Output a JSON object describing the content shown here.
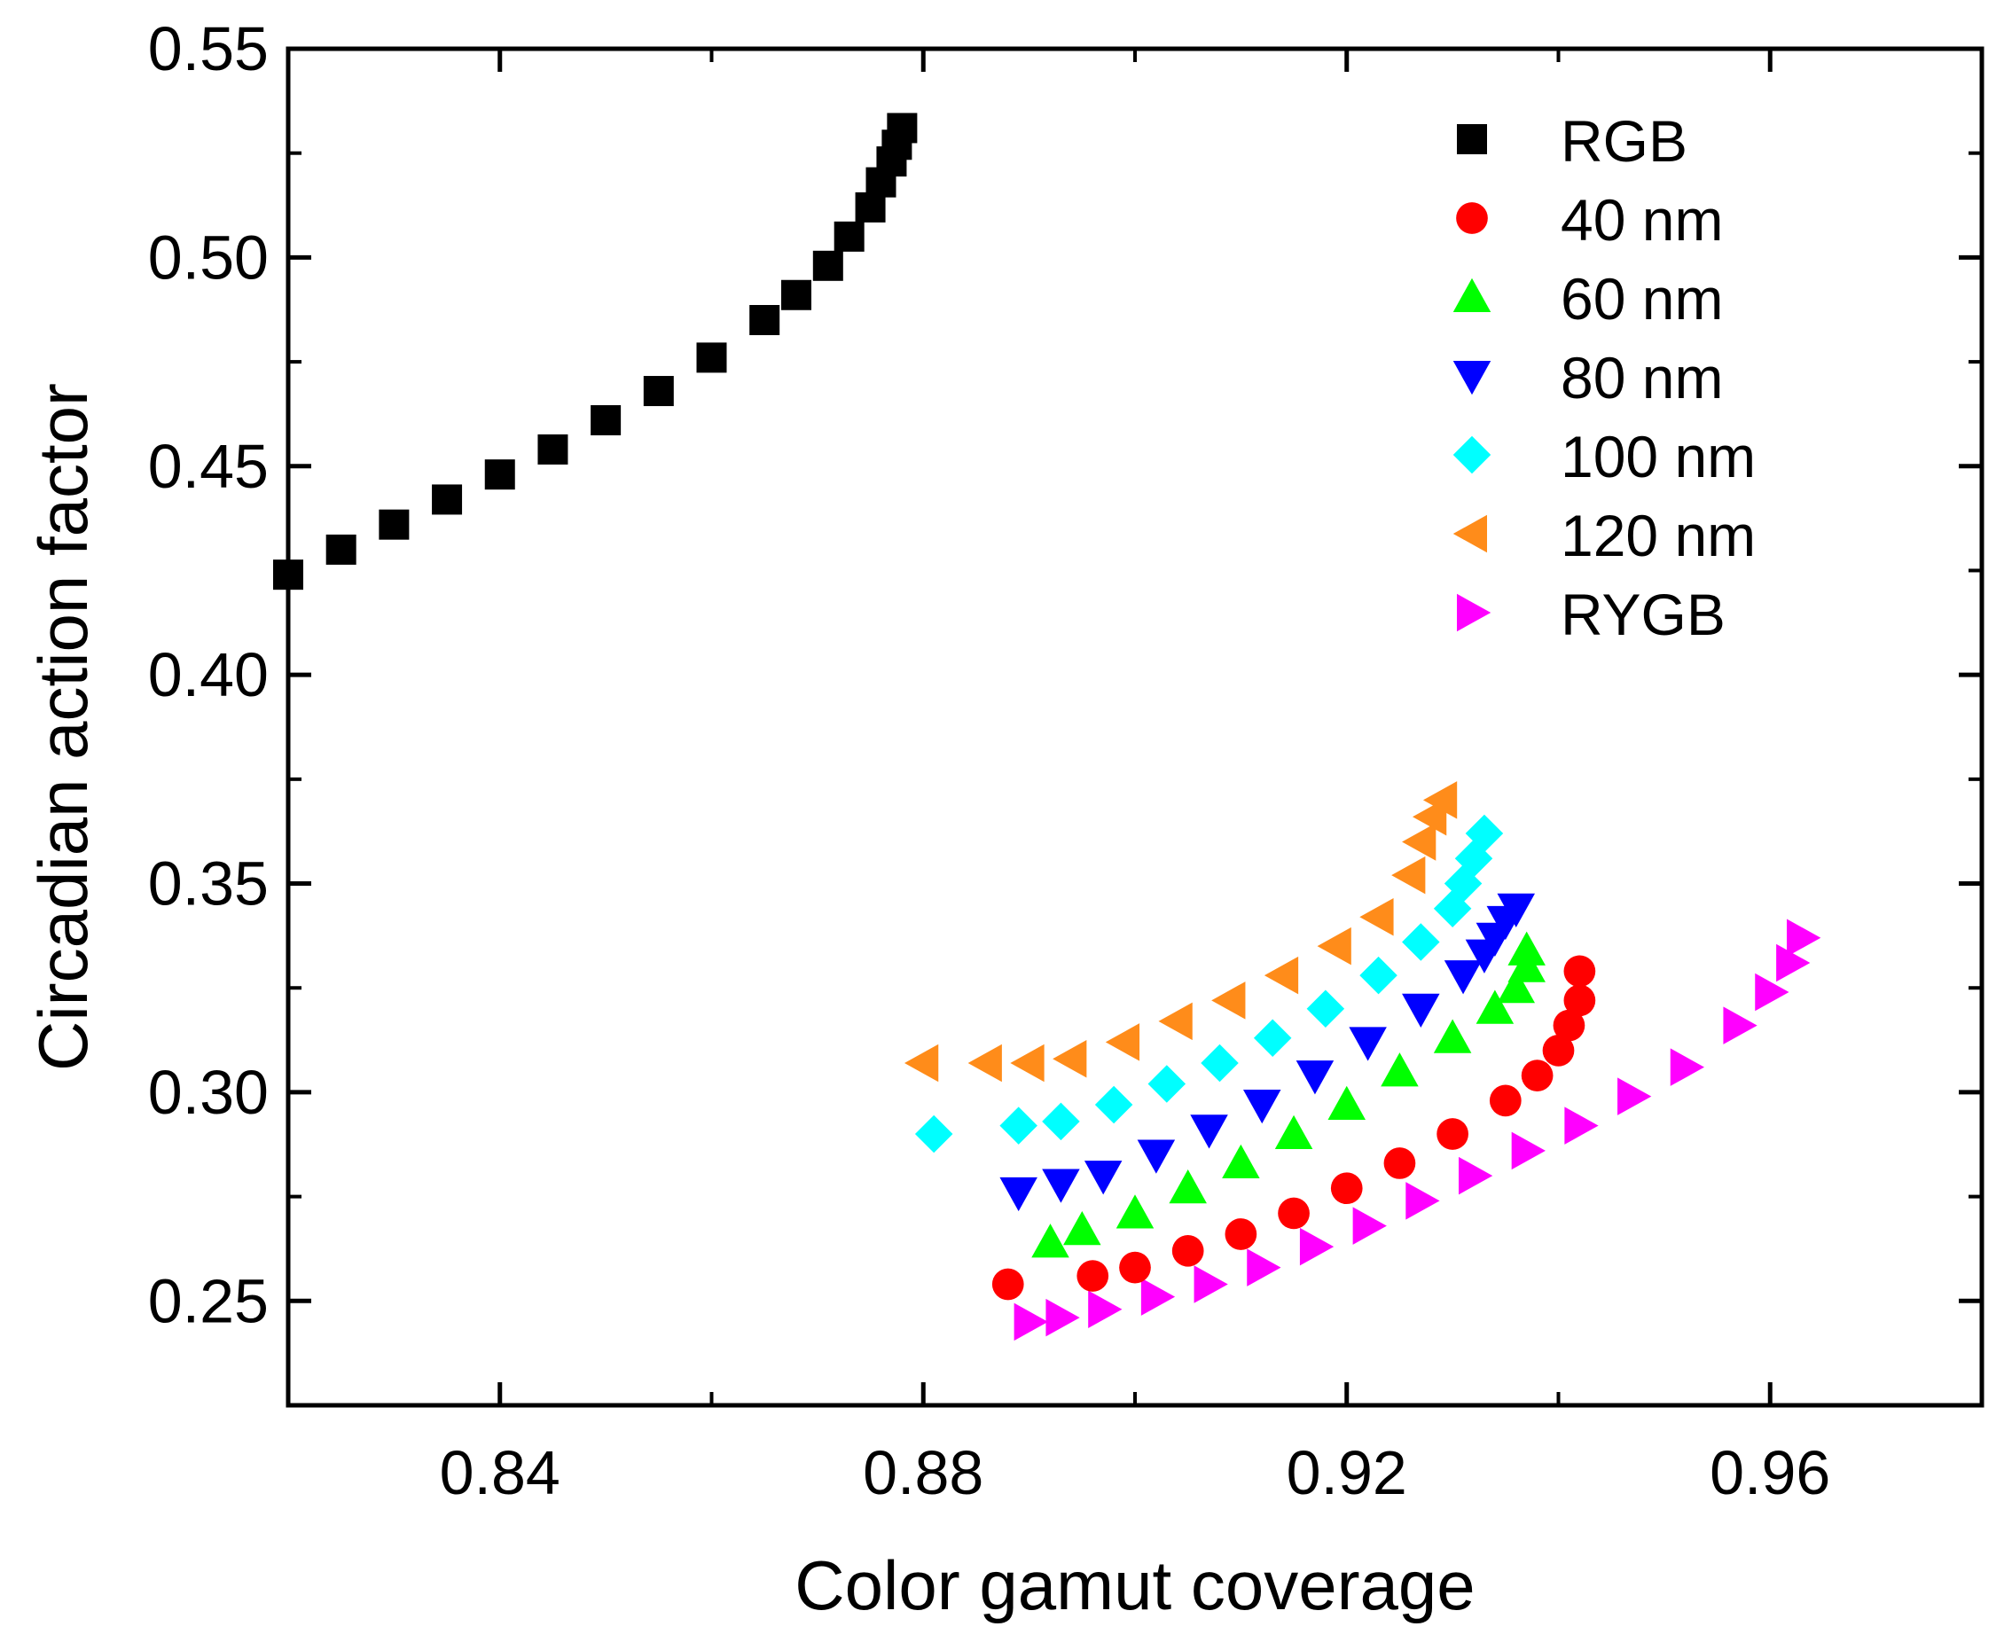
{
  "chart_data": {
    "type": "scatter",
    "title": "",
    "xlabel": "Color gamut coverage",
    "ylabel": "Circadian action factor",
    "xlim": [
      0.82,
      0.98
    ],
    "ylim": [
      0.225,
      0.55
    ],
    "xticks": [
      0.84,
      0.88,
      0.92,
      0.96
    ],
    "xtick_labels": [
      "0.84",
      "0.88",
      "0.92",
      "0.96"
    ],
    "yticks": [
      0.25,
      0.3,
      0.35,
      0.4,
      0.45,
      0.5,
      0.55
    ],
    "ytick_labels": [
      "0.25",
      "0.30",
      "0.35",
      "0.40",
      "0.45",
      "0.50",
      "0.55"
    ],
    "grid": false,
    "legend_position": "top-right",
    "series": [
      {
        "name": "RGB",
        "marker": "square",
        "color": "#000000",
        "x": [
          0.82,
          0.825,
          0.83,
          0.835,
          0.84,
          0.845,
          0.85,
          0.855,
          0.86,
          0.865,
          0.868,
          0.871,
          0.873,
          0.875,
          0.876,
          0.877,
          0.8775,
          0.878
        ],
        "y": [
          0.424,
          0.43,
          0.436,
          0.442,
          0.448,
          0.454,
          0.461,
          0.468,
          0.476,
          0.485,
          0.491,
          0.498,
          0.505,
          0.512,
          0.518,
          0.523,
          0.527,
          0.531
        ]
      },
      {
        "name": "40 nm",
        "marker": "circle",
        "color": "#ff0000",
        "x": [
          0.888,
          0.896,
          0.9,
          0.905,
          0.91,
          0.915,
          0.92,
          0.925,
          0.93,
          0.935,
          0.938,
          0.94,
          0.941,
          0.942,
          0.942
        ],
        "y": [
          0.254,
          0.256,
          0.258,
          0.262,
          0.266,
          0.271,
          0.277,
          0.283,
          0.29,
          0.298,
          0.304,
          0.31,
          0.316,
          0.322,
          0.329
        ]
      },
      {
        "name": "60 nm",
        "marker": "triangle-up",
        "color": "#00ff00",
        "x": [
          0.892,
          0.895,
          0.9,
          0.905,
          0.91,
          0.915,
          0.92,
          0.925,
          0.93,
          0.934,
          0.936,
          0.937,
          0.937
        ],
        "y": [
          0.264,
          0.267,
          0.271,
          0.277,
          0.283,
          0.29,
          0.297,
          0.305,
          0.313,
          0.32,
          0.325,
          0.33,
          0.334
        ]
      },
      {
        "name": "80 nm",
        "marker": "triangle-down",
        "color": "#0000ff",
        "x": [
          0.889,
          0.893,
          0.897,
          0.902,
          0.907,
          0.912,
          0.917,
          0.922,
          0.927,
          0.931,
          0.933,
          0.934,
          0.935,
          0.936
        ],
        "y": [
          0.276,
          0.278,
          0.28,
          0.285,
          0.291,
          0.297,
          0.304,
          0.312,
          0.32,
          0.328,
          0.333,
          0.337,
          0.341,
          0.344
        ]
      },
      {
        "name": "100 nm",
        "marker": "diamond",
        "color": "#00ffff",
        "x": [
          0.881,
          0.889,
          0.893,
          0.898,
          0.903,
          0.908,
          0.913,
          0.918,
          0.923,
          0.927,
          0.93,
          0.931,
          0.932,
          0.933
        ],
        "y": [
          0.29,
          0.292,
          0.293,
          0.297,
          0.302,
          0.307,
          0.313,
          0.32,
          0.328,
          0.336,
          0.344,
          0.35,
          0.356,
          0.362
        ]
      },
      {
        "name": "120 nm",
        "marker": "triangle-left",
        "color": "#ff8c1a",
        "x": [
          0.88,
          0.886,
          0.89,
          0.894,
          0.899,
          0.904,
          0.909,
          0.914,
          0.919,
          0.923,
          0.926,
          0.927,
          0.928,
          0.929
        ],
        "y": [
          0.307,
          0.307,
          0.307,
          0.308,
          0.312,
          0.317,
          0.322,
          0.328,
          0.335,
          0.342,
          0.352,
          0.36,
          0.366,
          0.37
        ]
      },
      {
        "name": "RYGB",
        "marker": "triangle-right",
        "color": "#ff00ff",
        "x": [
          0.89,
          0.893,
          0.897,
          0.902,
          0.907,
          0.912,
          0.917,
          0.922,
          0.927,
          0.932,
          0.937,
          0.942,
          0.947,
          0.952,
          0.957,
          0.96,
          0.962,
          0.963
        ],
        "y": [
          0.245,
          0.246,
          0.248,
          0.251,
          0.254,
          0.258,
          0.263,
          0.268,
          0.274,
          0.28,
          0.286,
          0.292,
          0.299,
          0.306,
          0.316,
          0.324,
          0.331,
          0.337
        ]
      }
    ]
  }
}
